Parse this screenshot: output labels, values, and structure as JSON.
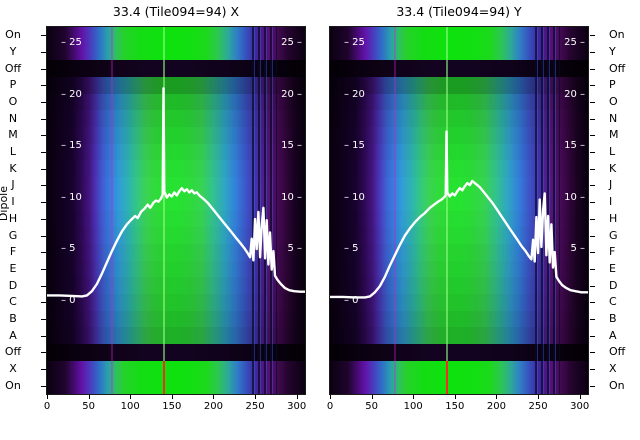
{
  "figure": {
    "background": "#ffffff",
    "dipole_axis_label": "Dipole",
    "dipole_labels": [
      "On",
      "Y",
      "Off",
      "P",
      "O",
      "N",
      "M",
      "L",
      "K",
      "J",
      "I",
      "H",
      "G",
      "F",
      "E",
      "D",
      "C",
      "B",
      "A",
      "Off",
      "X",
      "On"
    ],
    "row_types": [
      "bright",
      "bright",
      "off",
      "main",
      "main",
      "main",
      "main",
      "main",
      "main",
      "main",
      "main",
      "main",
      "main",
      "main",
      "main",
      "main",
      "main",
      "main",
      "main",
      "off",
      "bright",
      "bright"
    ],
    "row_brightness": [
      1,
      1,
      1,
      0.75,
      0.9,
      0.96,
      1,
      1.04,
      1.07,
      1.09,
      1.09,
      1.07,
      1.05,
      1.02,
      1,
      0.97,
      0.94,
      0.9,
      0.85,
      1,
      1,
      1
    ],
    "x_ticks": [
      0,
      50,
      100,
      150,
      200,
      250,
      300
    ],
    "db_ticks": [
      25,
      20,
      15,
      10,
      5,
      0
    ],
    "db_ticks_right": [
      25,
      20,
      15,
      10,
      5
    ],
    "x_range": [
      0,
      310
    ],
    "colors": {
      "line": "#ffffff",
      "tick_text_in": "#ffffff",
      "axis_text": "#000000",
      "center_line_main": "#9cff8c",
      "center_line_bottom": "#ff2020",
      "magenta_line": "#cc22cc"
    },
    "features": {
      "center_line_x": 140,
      "magenta_line_x": 77,
      "stripe_region": [
        246,
        276
      ]
    },
    "gradients": {
      "main": [
        [
          0,
          "#07000c"
        ],
        [
          0.1,
          "#16022a"
        ],
        [
          0.135,
          "#2b0850"
        ],
        [
          0.165,
          "#3f1478"
        ],
        [
          0.19,
          "#4430a8"
        ],
        [
          0.215,
          "#3b55c0"
        ],
        [
          0.245,
          "#3173cc"
        ],
        [
          0.28,
          "#2d90c6"
        ],
        [
          0.32,
          "#2aa79e"
        ],
        [
          0.355,
          "#30b972"
        ],
        [
          0.385,
          "#35c24c"
        ],
        [
          0.42,
          "#2cc936"
        ],
        [
          0.452,
          "#26cd2e"
        ],
        [
          0.5,
          "#22d02c"
        ],
        [
          0.55,
          "#28ca34"
        ],
        [
          0.6,
          "#32c24c"
        ],
        [
          0.645,
          "#2eb184"
        ],
        [
          0.69,
          "#2b97b4"
        ],
        [
          0.73,
          "#2f76c8"
        ],
        [
          0.765,
          "#3654bc"
        ],
        [
          0.8,
          "#3d35a4"
        ],
        [
          0.832,
          "#471e88"
        ],
        [
          0.862,
          "#4f1269"
        ],
        [
          0.895,
          "#410950"
        ],
        [
          0.928,
          "#2b0534"
        ],
        [
          0.96,
          "#16021e"
        ],
        [
          1,
          "#08000e"
        ]
      ],
      "bright": [
        [
          0,
          "#0a0110"
        ],
        [
          0.07,
          "#20042e"
        ],
        [
          0.105,
          "#440a70"
        ],
        [
          0.135,
          "#6212a8"
        ],
        [
          0.165,
          "#4c38bc"
        ],
        [
          0.2,
          "#2f6cc8"
        ],
        [
          0.235,
          "#2a9fae"
        ],
        [
          0.27,
          "#2fc25a"
        ],
        [
          0.3,
          "#24d228"
        ],
        [
          0.36,
          "#14dc14"
        ],
        [
          0.45,
          "#0ee20e"
        ],
        [
          0.55,
          "#10e010"
        ],
        [
          0.62,
          "#1cd81c"
        ],
        [
          0.66,
          "#2cc84e"
        ],
        [
          0.7,
          "#2daa96"
        ],
        [
          0.735,
          "#2f80c6"
        ],
        [
          0.77,
          "#3653c0"
        ],
        [
          0.8,
          "#3d2fa4"
        ],
        [
          0.83,
          "#4a1a86"
        ],
        [
          0.862,
          "#5a0e74"
        ],
        [
          0.895,
          "#420a52"
        ],
        [
          0.93,
          "#260530"
        ],
        [
          1,
          "#0b0012"
        ]
      ],
      "off": [
        [
          0,
          "#030005"
        ],
        [
          0.12,
          "#0a0110"
        ],
        [
          0.25,
          "#100218"
        ],
        [
          0.4,
          "#130320"
        ],
        [
          0.55,
          "#120320"
        ],
        [
          0.7,
          "#0f021a"
        ],
        [
          0.85,
          "#090110"
        ],
        [
          1,
          "#030004"
        ]
      ]
    }
  },
  "chart_data": [
    {
      "type": "heatmap",
      "title": "33.4 (Tile094=94) X",
      "pol": "X",
      "x_range": [
        0,
        310
      ],
      "x_ticks": [
        0,
        50,
        100,
        150,
        200,
        250,
        300
      ],
      "y_ticks_db": [
        25,
        20,
        15,
        10,
        5,
        0
      ],
      "legend_position": "none",
      "line": {
        "units": "dB",
        "points": [
          [
            0,
            0.5
          ],
          [
            15,
            0.5
          ],
          [
            30,
            0.45
          ],
          [
            42,
            0.4
          ],
          [
            48,
            0.5
          ],
          [
            54,
            0.9
          ],
          [
            60,
            1.6
          ],
          [
            66,
            2.6
          ],
          [
            72,
            3.7
          ],
          [
            78,
            4.8
          ],
          [
            84,
            5.8
          ],
          [
            90,
            6.7
          ],
          [
            96,
            7.4
          ],
          [
            102,
            7.9
          ],
          [
            106,
            8.2
          ],
          [
            109,
            8.0
          ],
          [
            113,
            8.6
          ],
          [
            117,
            8.9
          ],
          [
            121,
            9.3
          ],
          [
            124,
            9.0
          ],
          [
            128,
            9.5
          ],
          [
            131,
            9.7
          ],
          [
            134,
            9.6
          ],
          [
            137,
            9.9
          ],
          [
            139,
            10.3
          ],
          [
            140,
            20.6
          ],
          [
            141,
            10.6
          ],
          [
            144,
            10.0
          ],
          [
            147,
            10.3
          ],
          [
            150,
            10.1
          ],
          [
            153,
            10.5
          ],
          [
            156,
            10.2
          ],
          [
            159,
            10.6
          ],
          [
            162,
            10.9
          ],
          [
            165,
            10.6
          ],
          [
            168,
            10.8
          ],
          [
            171,
            10.5
          ],
          [
            174,
            10.7
          ],
          [
            177,
            10.4
          ],
          [
            180,
            10.5
          ],
          [
            183,
            10.2
          ],
          [
            186,
            10.0
          ],
          [
            189,
            9.8
          ],
          [
            193,
            9.5
          ],
          [
            197,
            9.1
          ],
          [
            202,
            8.6
          ],
          [
            207,
            8.1
          ],
          [
            212,
            7.6
          ],
          [
            217,
            7.1
          ],
          [
            222,
            6.6
          ],
          [
            227,
            6.1
          ],
          [
            232,
            5.6
          ],
          [
            237,
            5.1
          ],
          [
            241,
            4.6
          ],
          [
            244,
            4.2
          ],
          [
            246,
            6.0
          ],
          [
            248,
            3.9
          ],
          [
            250,
            7.9
          ],
          [
            252,
            5.0
          ],
          [
            254,
            8.6
          ],
          [
            256,
            4.2
          ],
          [
            258,
            7.2
          ],
          [
            260,
            9.0
          ],
          [
            262,
            4.1
          ],
          [
            264,
            7.8
          ],
          [
            266,
            3.5
          ],
          [
            268,
            6.6
          ],
          [
            270,
            3.0
          ],
          [
            272,
            4.8
          ],
          [
            274,
            2.4
          ],
          [
            277,
            2.0
          ],
          [
            281,
            1.6
          ],
          [
            286,
            1.2
          ],
          [
            291,
            1.0
          ],
          [
            297,
            0.9
          ],
          [
            304,
            0.85
          ],
          [
            310,
            0.85
          ]
        ]
      }
    },
    {
      "type": "heatmap",
      "title": "33.4 (Tile094=94) Y",
      "pol": "Y",
      "x_range": [
        0,
        310
      ],
      "x_ticks": [
        0,
        50,
        100,
        150,
        200,
        250,
        300
      ],
      "y_ticks_db": [
        25,
        20,
        15,
        10,
        5,
        0
      ],
      "legend_position": "none",
      "line": {
        "units": "dB",
        "points": [
          [
            0,
            0.35
          ],
          [
            15,
            0.35
          ],
          [
            30,
            0.3
          ],
          [
            42,
            0.3
          ],
          [
            48,
            0.4
          ],
          [
            54,
            0.8
          ],
          [
            60,
            1.4
          ],
          [
            66,
            2.3
          ],
          [
            72,
            3.4
          ],
          [
            78,
            4.4
          ],
          [
            84,
            5.4
          ],
          [
            90,
            6.3
          ],
          [
            96,
            7.0
          ],
          [
            102,
            7.6
          ],
          [
            108,
            8.1
          ],
          [
            114,
            8.5
          ],
          [
            120,
            9.0
          ],
          [
            125,
            9.3
          ],
          [
            130,
            9.6
          ],
          [
            134,
            9.8
          ],
          [
            137,
            10.0
          ],
          [
            139,
            10.2
          ],
          [
            140,
            16.4
          ],
          [
            141,
            10.5
          ],
          [
            144,
            10.1
          ],
          [
            147,
            10.4
          ],
          [
            150,
            10.2
          ],
          [
            153,
            10.6
          ],
          [
            156,
            10.9
          ],
          [
            159,
            10.7
          ],
          [
            162,
            11.1
          ],
          [
            165,
            11.4
          ],
          [
            168,
            11.2
          ],
          [
            171,
            11.6
          ],
          [
            174,
            11.4
          ],
          [
            177,
            11.2
          ],
          [
            180,
            11.0
          ],
          [
            183,
            10.7
          ],
          [
            186,
            10.4
          ],
          [
            190,
            10.0
          ],
          [
            195,
            9.5
          ],
          [
            200,
            8.9
          ],
          [
            205,
            8.3
          ],
          [
            210,
            7.7
          ],
          [
            215,
            7.1
          ],
          [
            220,
            6.5
          ],
          [
            225,
            5.9
          ],
          [
            230,
            5.3
          ],
          [
            235,
            4.8
          ],
          [
            239,
            4.3
          ],
          [
            242,
            4.0
          ],
          [
            244,
            5.9
          ],
          [
            246,
            3.8
          ],
          [
            248,
            8.1
          ],
          [
            250,
            4.6
          ],
          [
            252,
            9.8
          ],
          [
            254,
            5.2
          ],
          [
            256,
            8.8
          ],
          [
            258,
            10.4
          ],
          [
            260,
            4.4
          ],
          [
            262,
            8.2
          ],
          [
            264,
            3.7
          ],
          [
            266,
            7.4
          ],
          [
            268,
            3.2
          ],
          [
            270,
            4.7
          ],
          [
            272,
            2.3
          ],
          [
            275,
            1.9
          ],
          [
            279,
            1.5
          ],
          [
            284,
            1.2
          ],
          [
            289,
            1.0
          ],
          [
            295,
            0.9
          ],
          [
            302,
            0.8
          ],
          [
            310,
            0.8
          ]
        ]
      }
    }
  ]
}
